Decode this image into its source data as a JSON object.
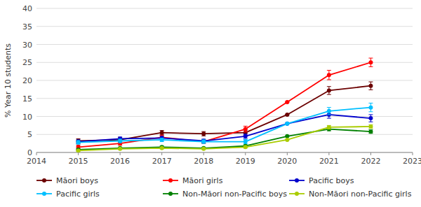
{
  "chart_data": {
    "type": "line",
    "y_label": "% Year 10 students",
    "x": [
      2015,
      2016,
      2017,
      2018,
      2019,
      2020,
      2021,
      2022
    ],
    "series": [
      {
        "name": "Māori boys",
        "color": "#6B0000",
        "values": [
          3.2,
          3.5,
          5.5,
          5.2,
          5.5,
          10.5,
          17.2,
          18.5
        ],
        "errors": [
          0.6,
          0.6,
          0.6,
          0.6,
          0.7,
          0.0,
          1.1,
          1.1
        ]
      },
      {
        "name": "Māori girls",
        "color": "#FF0000",
        "values": [
          1.5,
          2.5,
          4.2,
          3.0,
          6.5,
          14.0,
          21.5,
          25.0
        ],
        "errors": [
          0.5,
          0.5,
          0.6,
          0.5,
          0.8,
          0.0,
          1.3,
          1.2
        ]
      },
      {
        "name": "Pacific boys",
        "color": "#0000CC",
        "values": [
          3.0,
          3.8,
          4.0,
          3.2,
          4.5,
          8.0,
          10.5,
          9.5
        ],
        "errors": [
          0.5,
          0.5,
          0.5,
          0.5,
          0.6,
          0.0,
          1.0,
          1.0
        ]
      },
      {
        "name": "Pacific girls",
        "color": "#00BFFF",
        "values": [
          2.8,
          3.2,
          3.5,
          3.0,
          3.0,
          8.0,
          11.5,
          12.5
        ],
        "errors": [
          0.5,
          0.5,
          0.5,
          0.5,
          0.6,
          0.0,
          1.0,
          1.2
        ]
      },
      {
        "name": "Non-Māori non-Pacific boys",
        "color": "#008000",
        "values": [
          0.8,
          1.2,
          1.5,
          1.2,
          1.8,
          4.5,
          6.5,
          5.8
        ],
        "errors": [
          0.2,
          0.2,
          0.3,
          0.2,
          0.3,
          0.0,
          0.5,
          0.5
        ]
      },
      {
        "name": "Non-Māori non-Pacific girls",
        "color": "#AACC00",
        "values": [
          0.5,
          1.0,
          1.2,
          1.0,
          1.5,
          3.5,
          7.0,
          7.2
        ],
        "errors": [
          0.2,
          0.2,
          0.2,
          0.2,
          0.3,
          0.0,
          0.5,
          0.5
        ]
      }
    ],
    "xlim": [
      2014,
      2023
    ],
    "xticks": [
      2014,
      2015,
      2016,
      2017,
      2018,
      2019,
      2020,
      2021,
      2022,
      2023
    ],
    "ylim": [
      0,
      40
    ],
    "yticks": [
      0,
      5,
      10,
      15,
      20,
      25,
      30,
      35,
      40
    ],
    "grid": true,
    "marker": "circle",
    "legend": "bottom"
  }
}
